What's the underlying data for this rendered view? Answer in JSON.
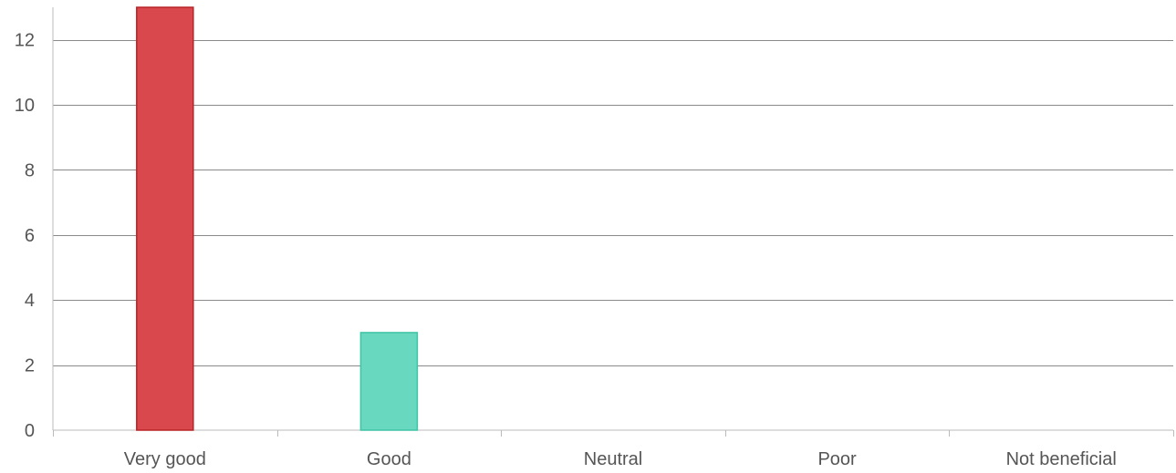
{
  "chart_data": {
    "type": "bar",
    "categories": [
      "Very good",
      "Good",
      "Neutral",
      "Poor",
      "Not beneficial"
    ],
    "values": [
      13,
      3,
      0,
      0,
      0
    ],
    "bar_colors": [
      "#d9484d",
      "#68d8bf",
      "#cccccc",
      "#cccccc",
      "#cccccc"
    ],
    "bar_border_colors": [
      "#b82326",
      "#3fc4a6",
      "#cccccc",
      "#cccccc",
      "#cccccc"
    ],
    "ylim": [
      0,
      13
    ],
    "yticks": [
      0,
      2,
      4,
      6,
      8,
      10,
      12
    ],
    "grid": true,
    "legend": "none",
    "title": "",
    "xlabel": "",
    "ylabel": ""
  }
}
